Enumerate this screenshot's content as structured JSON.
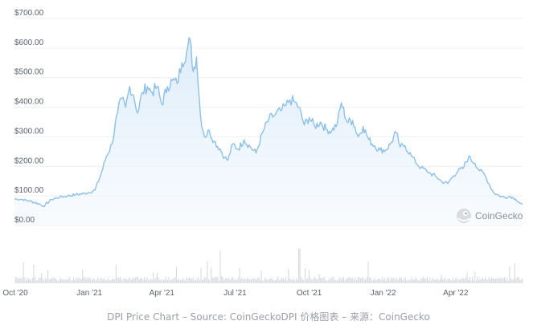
{
  "chart_data": {
    "type": "area",
    "currency_prefix": "$",
    "y_ticks": [
      "$700.00",
      "$600.00",
      "$500.00",
      "$400.00",
      "$300.00",
      "$200.00",
      "$100.00",
      "$0.00"
    ],
    "y_tick_values": [
      700,
      600,
      500,
      400,
      300,
      200,
      100,
      0
    ],
    "ylim": [
      0,
      700
    ],
    "x_ticks": [
      "Oct '20",
      "Jan '21",
      "Apr '21",
      "Jul '21",
      "Oct '21",
      "Jan '22",
      "Apr '22"
    ],
    "x_tick_dates": [
      "2020-10-01",
      "2021-01-01",
      "2021-04-01",
      "2021-07-01",
      "2021-10-01",
      "2022-01-01",
      "2022-04-01"
    ],
    "xlim": [
      "2020-09-30",
      "2022-06-23"
    ],
    "grid": true,
    "legend": "none",
    "line_color": "#8dc0e8",
    "fill_color": "#e3f0fb",
    "volume_color": "#d5d8de",
    "series": [
      {
        "x": [
          "2020-09-30",
          "2020-10-10",
          "2020-10-20",
          "2020-10-30",
          "2020-11-05",
          "2020-11-15",
          "2020-11-25",
          "2020-12-05",
          "2020-12-15",
          "2020-12-25",
          "2021-01-01",
          "2021-01-08",
          "2021-01-15",
          "2021-01-22",
          "2021-01-29",
          "2021-02-05",
          "2021-02-10",
          "2021-02-15",
          "2021-02-20",
          "2021-02-25",
          "2021-03-02",
          "2021-03-08",
          "2021-03-14",
          "2021-03-20",
          "2021-03-26",
          "2021-04-01",
          "2021-04-08",
          "2021-04-14",
          "2021-04-20",
          "2021-04-26",
          "2021-05-02",
          "2021-05-06",
          "2021-05-10",
          "2021-05-14",
          "2021-05-19",
          "2021-05-24",
          "2021-05-30",
          "2021-06-05",
          "2021-06-12",
          "2021-06-18",
          "2021-06-22",
          "2021-06-28",
          "2021-07-05",
          "2021-07-12",
          "2021-07-20",
          "2021-07-27",
          "2021-08-05",
          "2021-08-12",
          "2021-08-20",
          "2021-08-28",
          "2021-09-02",
          "2021-09-07",
          "2021-09-12",
          "2021-09-18",
          "2021-09-25",
          "2021-10-01",
          "2021-10-08",
          "2021-10-15",
          "2021-10-22",
          "2021-10-29",
          "2021-11-05",
          "2021-11-10",
          "2021-11-17",
          "2021-11-24",
          "2021-12-01",
          "2021-12-07",
          "2021-12-14",
          "2021-12-21",
          "2021-12-28",
          "2022-01-04",
          "2022-01-10",
          "2022-01-17",
          "2022-01-22",
          "2022-01-28",
          "2022-02-05",
          "2022-02-10",
          "2022-02-17",
          "2022-02-24",
          "2022-03-01",
          "2022-03-08",
          "2022-03-15",
          "2022-03-22",
          "2022-03-29",
          "2022-04-04",
          "2022-04-10",
          "2022-04-17",
          "2022-04-25",
          "2022-05-01",
          "2022-05-07",
          "2022-05-12",
          "2022-05-18",
          "2022-05-25",
          "2022-06-01",
          "2022-06-08",
          "2022-06-14",
          "2022-06-20",
          "2022-06-23"
        ],
        "y": [
          90,
          88,
          82,
          74,
          65,
          88,
          96,
          100,
          104,
          108,
          112,
          120,
          170,
          232,
          275,
          380,
          430,
          400,
          470,
          440,
          380,
          450,
          470,
          450,
          470,
          410,
          470,
          490,
          480,
          550,
          590,
          630,
          520,
          570,
          370,
          300,
          320,
          285,
          260,
          230,
          220,
          275,
          258,
          290,
          265,
          245,
          320,
          360,
          375,
          390,
          405,
          425,
          420,
          400,
          340,
          365,
          335,
          350,
          325,
          320,
          345,
          415,
          350,
          355,
          300,
          335,
          290,
          270,
          255,
          255,
          275,
          315,
          265,
          270,
          235,
          215,
          195,
          185,
          175,
          165,
          148,
          142,
          168,
          185,
          192,
          232,
          210,
          185,
          172,
          142,
          112,
          100,
          95,
          98,
          90,
          75,
          72
        ]
      }
    ]
  },
  "watermark": {
    "brand": "CoinGecko",
    "icon": "coingecko-gecko-icon"
  },
  "caption": "DPI Price Chart – Source: CoinGeckoDPI 价格图表 – 来源：CoinGecko"
}
